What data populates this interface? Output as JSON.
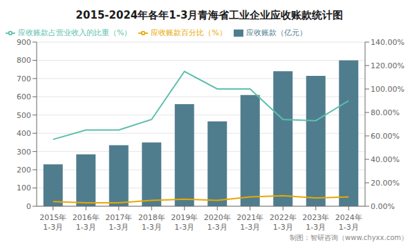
{
  "chart_data": {
    "type": "bar",
    "title": "2015-2024年各年1-3月青海省工业企业应收账款统计图",
    "categories": [
      "2015年\n1-3月",
      "2016年\n1-3月",
      "2017年\n1-3月",
      "2018年\n1-3月",
      "2019年\n1-3月",
      "2020年\n1-3月",
      "2021年\n1-3月",
      "2022年\n1-3月",
      "2023年\n1-3月",
      "2024年\n1-3月"
    ],
    "series": [
      {
        "name": "应收账款（亿元）",
        "type": "bar",
        "color": "#507d8e",
        "values": [
          230,
          285,
          335,
          350,
          560,
          465,
          610,
          740,
          715,
          800
        ]
      },
      {
        "name": "应收账款百分比（%）",
        "type": "line",
        "color": "#e8a800",
        "marker": "none",
        "axis": "y2",
        "values": [
          4,
          3,
          3,
          5,
          6,
          5,
          8,
          9,
          7,
          8
        ]
      },
      {
        "name": "应收账款占营业收入的比重（%）",
        "type": "line",
        "color": "#5bbfad",
        "marker": "none",
        "axis": "y2",
        "values": [
          57,
          65,
          65,
          74,
          115,
          100,
          100,
          74,
          73,
          90
        ]
      }
    ],
    "ylim": [
      0,
      900
    ],
    "yticks": [
      0,
      100,
      200,
      300,
      400,
      500,
      600,
      700,
      800,
      900
    ],
    "y2lim": [
      0,
      140
    ],
    "y2ticks": [
      {
        "value": 0,
        "label": "0.00%"
      },
      {
        "value": 20,
        "label": "20.00%"
      },
      {
        "value": 40,
        "label": "40.00%"
      },
      {
        "value": 60,
        "label": "60.00%"
      },
      {
        "value": 80,
        "label": "80.00%"
      },
      {
        "value": 100,
        "label": "100.00%"
      },
      {
        "value": 120,
        "label": "120.00%"
      },
      {
        "value": 140,
        "label": "140.00%"
      }
    ],
    "grid": true,
    "legend": "upper left",
    "annotations": [
      "制图：智研咨询（www.chyxx.com）"
    ]
  }
}
